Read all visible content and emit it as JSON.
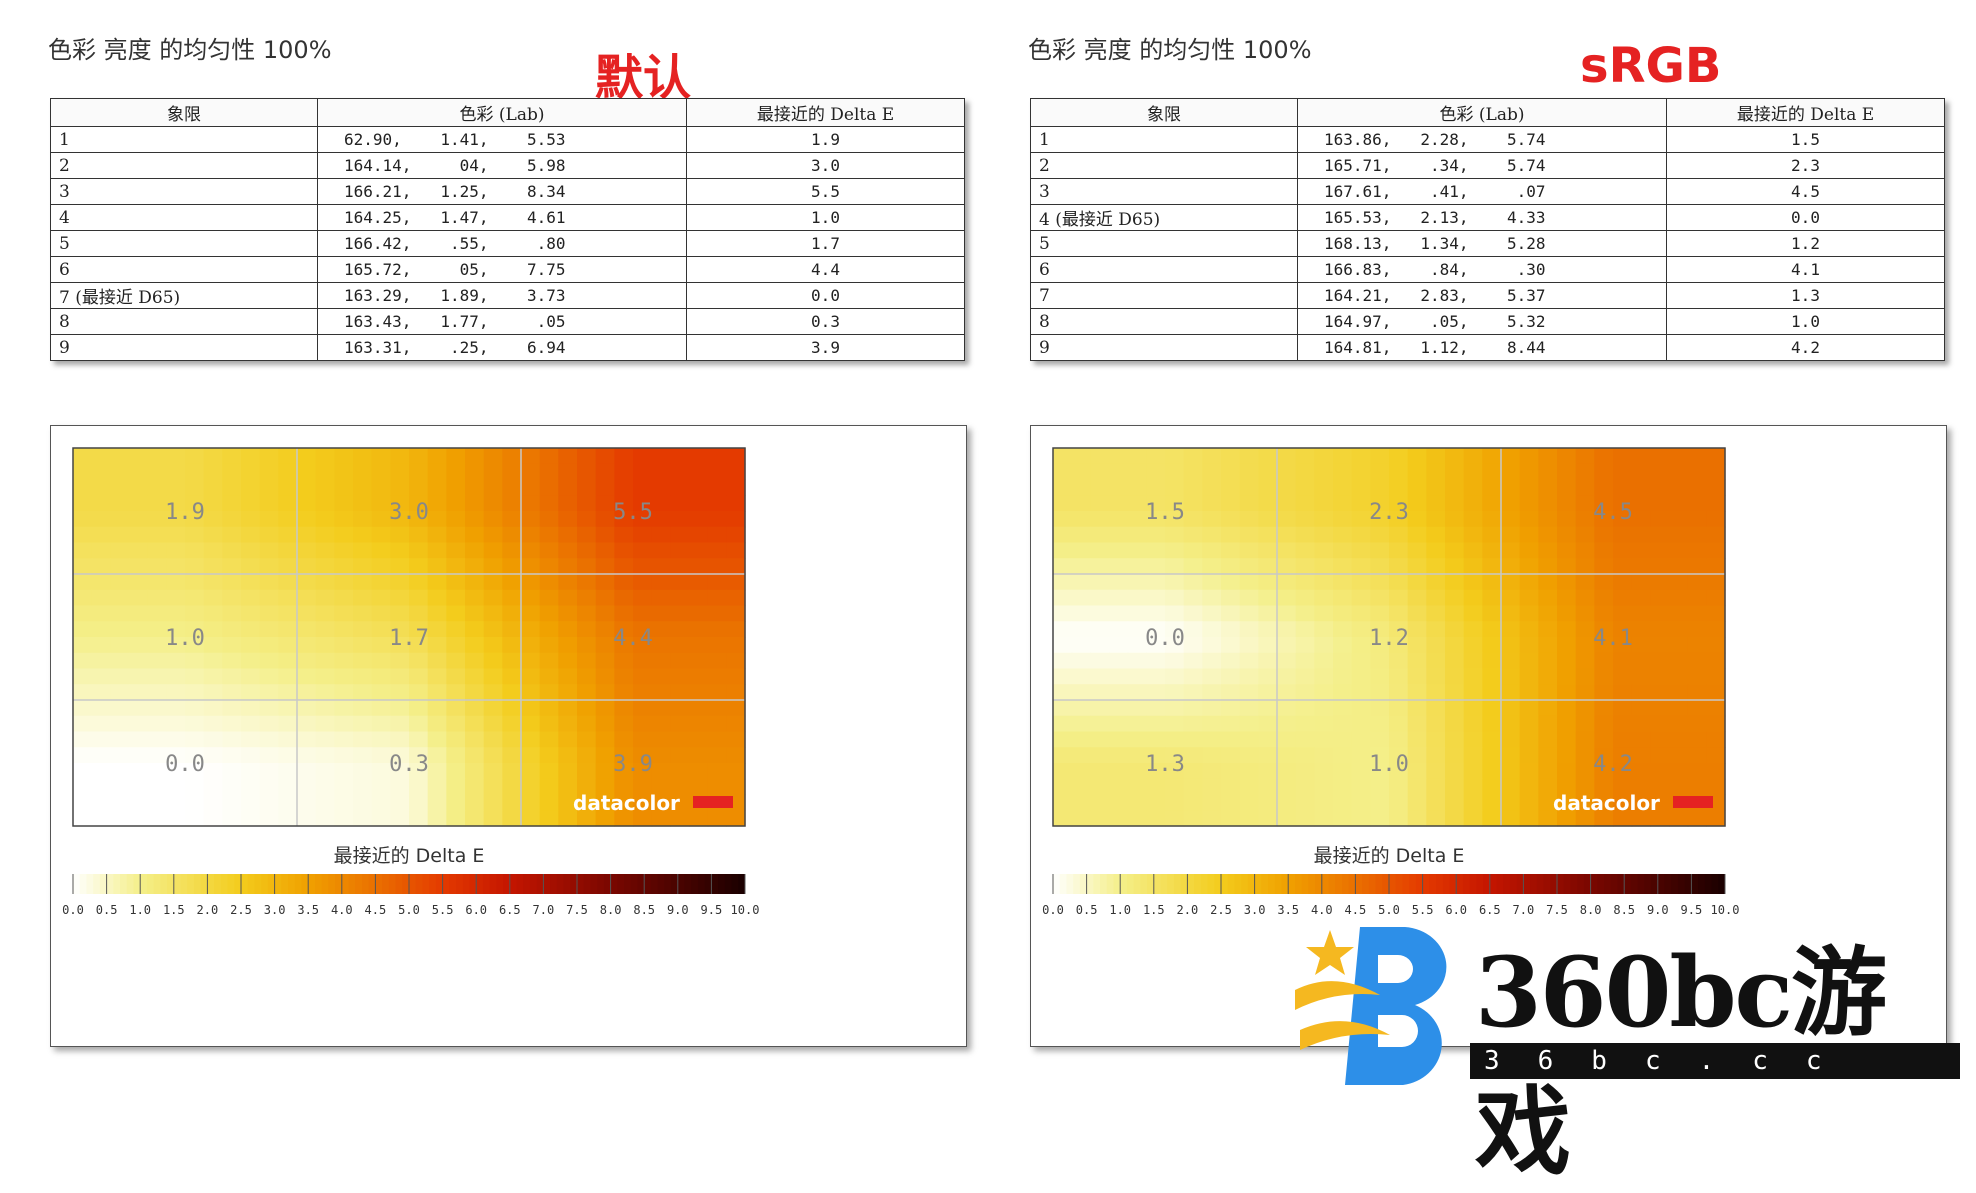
{
  "panels": [
    {
      "heading": "色彩 亮度 的均匀性 100%",
      "mode": "默认",
      "table": {
        "headers": [
          "象限",
          "色彩 (Lab)",
          "最接近的 Delta E"
        ],
        "rows": [
          [
            "1",
            "62.90,    1.41,    5.53",
            "1.9"
          ],
          [
            "2",
            "164.14,     04,    5.98",
            "3.0"
          ],
          [
            "3",
            "166.21,   1.25,    8.34",
            "5.5"
          ],
          [
            "4",
            "164.25,   1.47,    4.61",
            "1.0"
          ],
          [
            "5",
            "166.42,    .55,     .80",
            "1.7"
          ],
          [
            "6",
            "165.72,     05,    7.75",
            "4.4"
          ],
          [
            "7 (最接近 D65)",
            "163.29,   1.89,    3.73",
            "0.0"
          ],
          [
            "8",
            "163.43,   1.77,     .05",
            "0.3"
          ],
          [
            "9",
            "163.31,    .25,    6.94",
            "3.9"
          ]
        ]
      }
    },
    {
      "heading": "色彩 亮度 的均匀性 100%",
      "mode": "sRGB",
      "table": {
        "headers": [
          "象限",
          "色彩 (Lab)",
          "最接近的 Delta E"
        ],
        "rows": [
          [
            "1",
            "163.86,   2.28,    5.74",
            "1.5"
          ],
          [
            "2",
            "165.71,    .34,    5.74",
            "2.3"
          ],
          [
            "3",
            "167.61,    .41,     .07",
            "4.5"
          ],
          [
            "4 (最接近 D65)",
            "165.53,   2.13,    4.33",
            "0.0"
          ],
          [
            "5",
            "168.13,   1.34,    5.28",
            "1.2"
          ],
          [
            "6",
            "166.83,    .84,     .30",
            "4.1"
          ],
          [
            "7",
            "164.21,   2.83,    5.37",
            "1.3"
          ],
          [
            "8",
            "164.97,    .05,    5.32",
            "1.0"
          ],
          [
            "9",
            "164.81,   1.12,    8.44",
            "4.2"
          ]
        ]
      }
    }
  ],
  "chart_data": [
    {
      "type": "heatmap",
      "grid": [
        [
          1.9,
          3.0,
          5.5
        ],
        [
          1.0,
          1.7,
          4.4
        ],
        [
          0.0,
          0.3,
          3.9
        ]
      ],
      "cell_labels": [
        [
          "1.9",
          "3.0",
          "5.5"
        ],
        [
          "1.0",
          "1.7",
          "4.4"
        ],
        [
          "0.0",
          "0.3",
          "3.9"
        ]
      ],
      "colorbar_title": "最接近的 Delta E",
      "colorbar_ticks": [
        "0.0",
        "0.5",
        "1.0",
        "1.5",
        "2.0",
        "2.5",
        "3.0",
        "3.5",
        "4.0",
        "4.5",
        "5.0",
        "5.5",
        "6.0",
        "6.5",
        "7.0",
        "7.5",
        "8.0",
        "8.5",
        "9.0",
        "9.5",
        "10.0"
      ],
      "range": [
        0,
        10
      ],
      "brand": "datacolor"
    },
    {
      "type": "heatmap",
      "grid": [
        [
          1.5,
          2.3,
          4.5
        ],
        [
          0.0,
          1.2,
          4.1
        ],
        [
          1.3,
          1.0,
          4.2
        ]
      ],
      "cell_labels": [
        [
          "1.5",
          "2.3",
          "4.5"
        ],
        [
          "0.0",
          "1.2",
          "4.1"
        ],
        [
          "1.3",
          "1.0",
          "4.2"
        ]
      ],
      "colorbar_title": "最接近的 Delta E",
      "colorbar_ticks": [
        "0.0",
        "0.5",
        "1.0",
        "1.5",
        "2.0",
        "2.5",
        "3.0",
        "3.5",
        "4.0",
        "4.5",
        "5.0",
        "5.5",
        "6.0",
        "6.5",
        "7.0",
        "7.5",
        "8.0",
        "8.5",
        "9.0",
        "9.5",
        "10.0"
      ],
      "range": [
        0,
        10
      ],
      "brand": "datacolor"
    }
  ],
  "colors": {
    "accent_red": "#e52222",
    "scale": [
      "#ffffff",
      "#f4ef8a",
      "#f3cc1c",
      "#f0a000",
      "#ea7000",
      "#e43a00",
      "#c41500",
      "#7a0700",
      "#1a0000"
    ]
  },
  "watermark": {
    "main": "360bc游戏",
    "sub": "36bc.cc"
  }
}
